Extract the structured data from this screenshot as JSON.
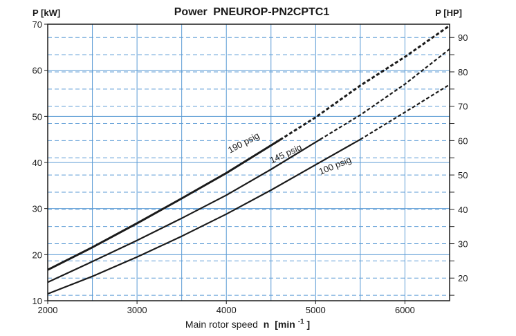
{
  "chart_data": {
    "type": "line",
    "title_bold": "Power",
    "title_rest": "PNEUROP-PN2CPTC1",
    "xlabel_main": "Main rotor speed",
    "xlabel_var": "n",
    "xlabel_unit_open": "[min",
    "xlabel_unit_sup": "-1",
    "xlabel_unit_close": "]",
    "ylabel_left": "P [kW]",
    "ylabel_right": "P [HP]",
    "xlim": [
      2000,
      6500
    ],
    "ylim": [
      10,
      70
    ],
    "x_ticks": [
      "2000",
      "3000",
      "4000",
      "5000",
      "6000"
    ],
    "x_tick_values": [
      2000,
      3000,
      4000,
      5000,
      6000
    ],
    "y_ticks": [
      "10",
      "20",
      "30",
      "40",
      "50",
      "60",
      "70"
    ],
    "y_tick_values": [
      10,
      20,
      30,
      40,
      50,
      60,
      70
    ],
    "y2_ticks": [
      "20",
      "30",
      "40",
      "50",
      "60",
      "70",
      "80",
      "90"
    ],
    "y2_tick_values_hp": [
      20,
      30,
      40,
      50,
      60,
      70,
      80,
      90
    ],
    "hp_to_kw": 0.7457,
    "x_grid_minor": [
      2500,
      3500,
      4500,
      5500,
      6500
    ],
    "series": [
      {
        "name": "190 psig",
        "solid_until": 4600,
        "stroke": 3,
        "x": [
          2000,
          2500,
          3000,
          3500,
          4000,
          4600,
          5000,
          5500,
          6000,
          6500
        ],
        "y": [
          16.7,
          21.6,
          26.8,
          32.2,
          37.7,
          44.9,
          49.8,
          56.7,
          62.9,
          69.7
        ]
      },
      {
        "name": "145 psig",
        "solid_until": 5050,
        "stroke": 2.2,
        "x": [
          2000,
          2500,
          3000,
          3500,
          4000,
          4500,
          5050,
          5500,
          6000,
          6500
        ],
        "y": [
          14.0,
          18.5,
          23.1,
          27.9,
          32.9,
          38.5,
          45.0,
          50.3,
          57.0,
          64.6
        ]
      },
      {
        "name": "100 psig",
        "solid_until": 5500,
        "stroke": 2.2,
        "x": [
          2000,
          2500,
          3000,
          3500,
          4000,
          4500,
          5000,
          5500,
          6000,
          6500
        ],
        "y": [
          11.5,
          15.3,
          19.5,
          24.0,
          28.8,
          34.0,
          39.5,
          45.0,
          50.9,
          56.9
        ]
      }
    ],
    "annotations": [
      {
        "text": "190 psig",
        "x": 4210,
        "y": 43.7,
        "angle": -28
      },
      {
        "text": "145 psig",
        "x": 4680,
        "y": 41.3,
        "angle": -25
      },
      {
        "text": "100 psig",
        "x": 5230,
        "y": 38.7,
        "angle": -22
      }
    ],
    "colors": {
      "grid": "#5b9bd5",
      "curve": "#1a1a1a",
      "axis": "#1a1a1a"
    }
  }
}
